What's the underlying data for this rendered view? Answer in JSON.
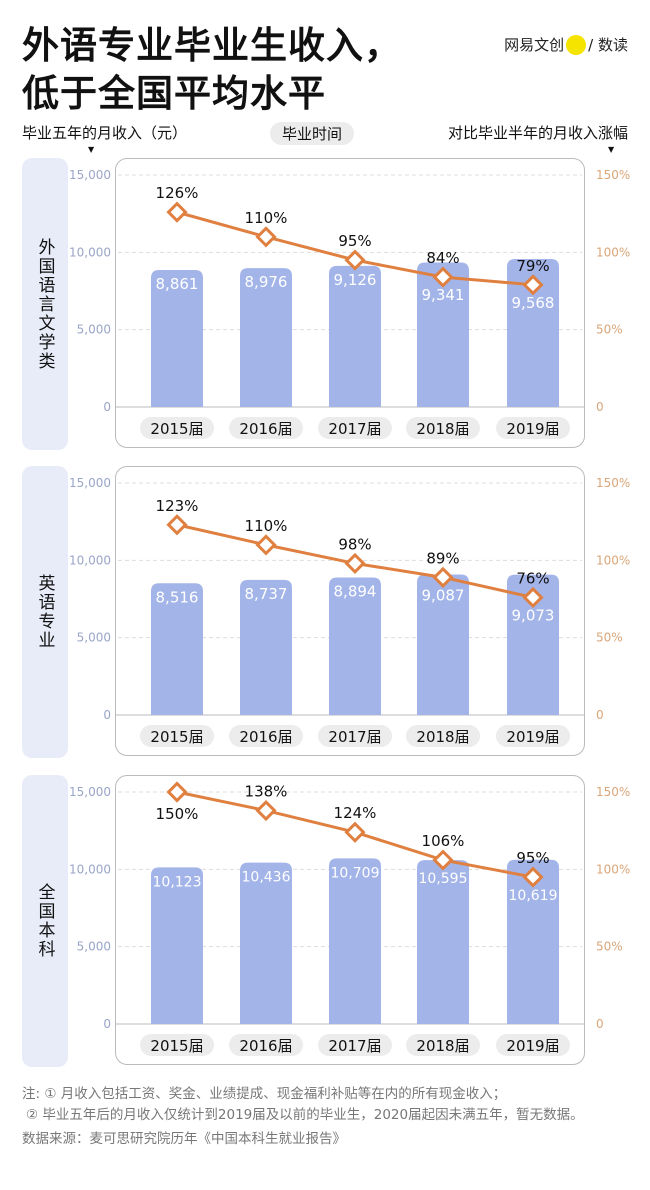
{
  "title": {
    "line1": "外语专业毕业生收入，",
    "line2": "低于全国平均水平"
  },
  "brand": {
    "left": "网易文创",
    "right": "/ 数读"
  },
  "headers": {
    "left": "毕业五年的月收入（元）",
    "middle": "毕业时间",
    "right": "对比毕业半年的月收入涨幅"
  },
  "colors": {
    "bar": "#a3b4e8",
    "line": "#e08040",
    "left_axis": "#9aa6c8",
    "right_axis": "#d9a67a",
    "side": "#e8ecf8"
  },
  "chart_data": [
    {
      "type": "bar+line",
      "label": "外国语言文学类",
      "categories": [
        "2015届",
        "2016届",
        "2017届",
        "2018届",
        "2019届"
      ],
      "bar_values": [
        8861,
        8976,
        9126,
        9341,
        9568
      ],
      "bar_labels": [
        "8,861",
        "8,976",
        "9,126",
        "9,341",
        "9,568"
      ],
      "line_values": [
        126,
        110,
        95,
        84,
        79
      ],
      "left_ylim": [
        0,
        15000
      ],
      "right_ylim": [
        0,
        150
      ]
    },
    {
      "type": "bar+line",
      "label": "英语专业",
      "categories": [
        "2015届",
        "2016届",
        "2017届",
        "2018届",
        "2019届"
      ],
      "bar_values": [
        8516,
        8737,
        8894,
        9087,
        9073
      ],
      "bar_labels": [
        "8,516",
        "8,737",
        "8,894",
        "9,087",
        "9,073"
      ],
      "line_values": [
        123,
        110,
        98,
        89,
        76
      ],
      "left_ylim": [
        0,
        15000
      ],
      "right_ylim": [
        0,
        150
      ]
    },
    {
      "type": "bar+line",
      "label": "全国本科",
      "categories": [
        "2015届",
        "2016届",
        "2017届",
        "2018届",
        "2019届"
      ],
      "bar_values": [
        10123,
        10436,
        10709,
        10595,
        10619
      ],
      "bar_labels": [
        "10,123",
        "10,436",
        "10,709",
        "10,595",
        "10,619"
      ],
      "line_values": [
        150,
        138,
        124,
        106,
        95
      ],
      "left_ylim": [
        0,
        15000
      ],
      "right_ylim": [
        0,
        150
      ]
    }
  ],
  "left_ticks": [
    "0",
    "5,000",
    "10,000",
    "15,000"
  ],
  "right_ticks": [
    "0",
    "50%",
    "100%",
    "150%"
  ],
  "notes": {
    "n1": "注: ① 月收入包括工资、奖金、业绩提成、现金福利补贴等在内的所有现金收入；",
    "n2": "② 毕业五年后的月收入仅统计到2019届及以前的毕业生，2020届起因未满五年，暂无数据。",
    "source": "数据来源：麦可思研究院历年《中国本科生就业报告》"
  }
}
